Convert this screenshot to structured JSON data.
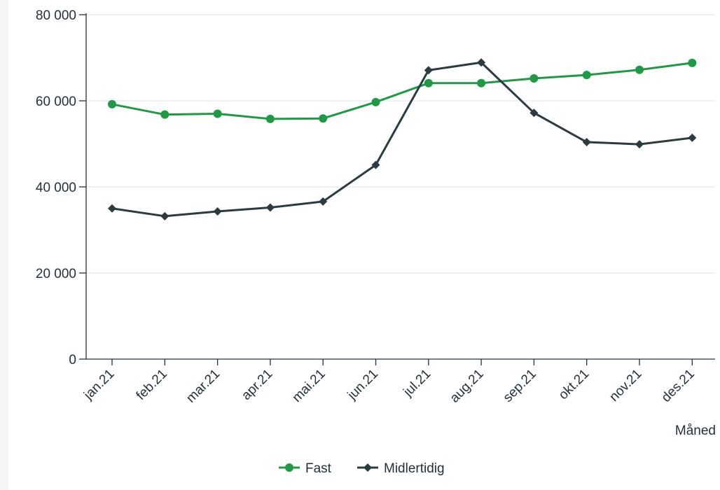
{
  "chart_data": {
    "type": "line",
    "title": "",
    "xlabel": "Måned",
    "ylabel": "",
    "categories": [
      "jan.21",
      "feb.21",
      "mar.21",
      "apr.21",
      "mai.21",
      "jun.21",
      "jul.21",
      "aug.21",
      "sep.21",
      "okt.21",
      "nov.21",
      "des.21"
    ],
    "ylim": [
      0,
      80000
    ],
    "yticks": [
      0,
      20000,
      40000,
      60000,
      80000
    ],
    "ytick_labels": [
      "0",
      "20 000",
      "40 000",
      "60 000",
      "80 000"
    ],
    "grid": true,
    "legend_position": "bottom-center",
    "series": [
      {
        "name": "Fast",
        "color": "#1e9a45",
        "marker": "circle",
        "values": [
          59200,
          56800,
          57000,
          55800,
          55900,
          59700,
          64100,
          64100,
          65200,
          66000,
          67200,
          68800
        ]
      },
      {
        "name": "Midlertidig",
        "color": "#2a3b42",
        "marker": "diamond",
        "values": [
          35000,
          33200,
          34300,
          35200,
          36600,
          45100,
          67100,
          68900,
          57200,
          50400,
          49900,
          51400
        ]
      }
    ]
  }
}
